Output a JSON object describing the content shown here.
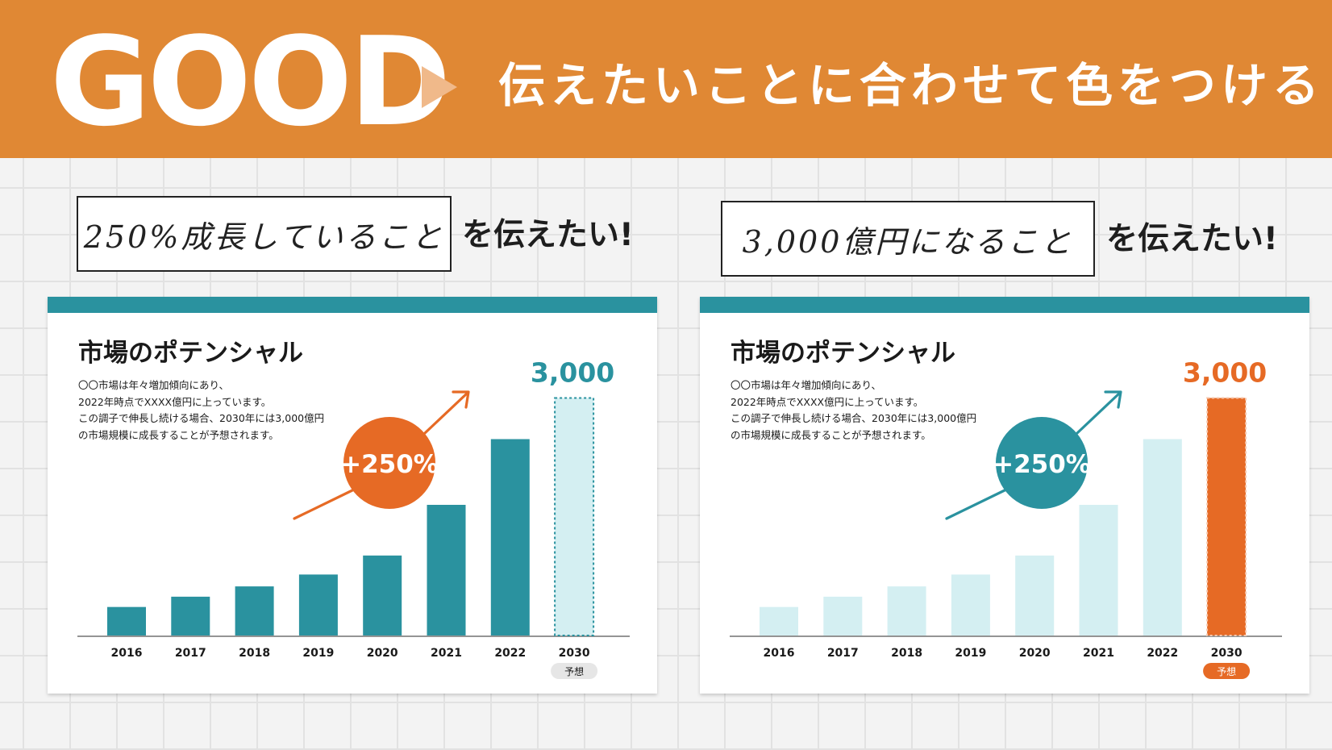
{
  "header": {
    "title": "GOOD",
    "headline": "伝えたいことに合わせて色をつける"
  },
  "colors": {
    "header_bg": "#e08834",
    "teal": "#2a929f",
    "light_teal": "#d4eff2",
    "orange": "#e66a25",
    "badge_gray": "#e6e6e6"
  },
  "left": {
    "message": "250%成長していること",
    "message_suffix": "を伝えたい!"
  },
  "right": {
    "message": "3,000億円になること",
    "message_suffix": "を伝えたい!"
  },
  "panel_text": {
    "title": "市場のポテンシャル",
    "desc_lines": [
      "〇〇市場は年々増加傾向にあり、",
      "2022年時点でXXXX億円に上っています。",
      "この調子で伸長し続ける場合、2030年には3,000億円",
      "の市場規模に成長することが予想されます。"
    ],
    "growth_label": "+250%",
    "forecast_badge": "予想",
    "top_value_label": "3,000"
  },
  "chart_data": [
    {
      "type": "bar",
      "title": "市場のポテンシャル",
      "categories": [
        "2016",
        "2017",
        "2018",
        "2019",
        "2020",
        "2021",
        "2022",
        "2030"
      ],
      "values": [
        360,
        490,
        620,
        770,
        1010,
        1650,
        2480,
        3000
      ],
      "forecast_index": 7,
      "highlight": "growth",
      "ylim": [
        0,
        3300
      ],
      "annotation": "+250%",
      "value_label": "3,000",
      "forecast_label": "予想"
    },
    {
      "type": "bar",
      "title": "市場のポテンシャル",
      "categories": [
        "2016",
        "2017",
        "2018",
        "2019",
        "2020",
        "2021",
        "2022",
        "2030"
      ],
      "values": [
        360,
        490,
        620,
        770,
        1010,
        1650,
        2480,
        3000
      ],
      "forecast_index": 7,
      "highlight": "forecast",
      "ylim": [
        0,
        3300
      ],
      "annotation": "+250%",
      "value_label": "3,000",
      "forecast_label": "予想"
    }
  ]
}
